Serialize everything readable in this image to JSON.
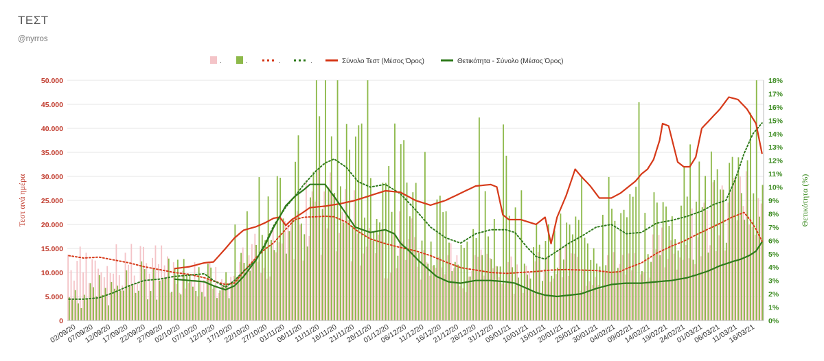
{
  "header": {
    "title": "ΤΕΣΤ",
    "subtitle": "@nyrros"
  },
  "colors": {
    "tests_bar": "#f4c4c8",
    "positivity_bar": "#8db94a",
    "tests_avg_line": "#d63a1a",
    "positivity_avg_line": "#2f7a1c",
    "left_axis": "#c0392b",
    "right_axis": "#3a8a1f"
  },
  "chart_data": {
    "type": "bar",
    "title": "",
    "legend": {
      "position": "top",
      "entries": [
        {
          "key": "tests_daily",
          "label": ".",
          "style": "bar"
        },
        {
          "key": "positivity_daily",
          "label": ".",
          "style": "bar"
        },
        {
          "key": "tests_avg_dotted",
          "label": ".",
          "style": "dotted"
        },
        {
          "key": "positivity_avg_dotted",
          "label": ".",
          "style": "dotted"
        },
        {
          "key": "tests_avg_total",
          "label": "Σύνολο Τεστ (Μέσος Όρος)",
          "style": "line"
        },
        {
          "key": "positivity_avg_total",
          "label": "Θετικότητα - Σύνολο (Μέσος Όρος)",
          "style": "line"
        }
      ]
    },
    "y_left": {
      "label": "Τεστ ανά ημέρα",
      "min": 0,
      "max": 50000,
      "ticks": [
        "0",
        "5.000",
        "10.000",
        "15.000",
        "20.000",
        "25.000",
        "30.000",
        "35.000",
        "40.000",
        "45.000",
        "50.000"
      ]
    },
    "y_right": {
      "label": "Θετικότητα (%)",
      "min": 0,
      "max": 18,
      "ticks": [
        "0%",
        "1%",
        "2%",
        "3%",
        "4%",
        "5%",
        "6%",
        "7%",
        "8%",
        "9%",
        "10%",
        "11%",
        "12%",
        "13%",
        "14%",
        "15%",
        "16%",
        "17%",
        "18%"
      ]
    },
    "x_ticks": [
      "02/09/20",
      "07/09/20",
      "12/09/20",
      "17/09/20",
      "22/09/20",
      "27/09/20",
      "02/10/20",
      "07/10/20",
      "12/10/20",
      "17/10/20",
      "22/10/20",
      "27/10/20",
      "01/11/20",
      "06/11/20",
      "11/11/20",
      "16/11/20",
      "21/11/20",
      "26/11/20",
      "01/12/20",
      "06/12/20",
      "11/12/20",
      "16/12/20",
      "21/12/20",
      "26/12/20",
      "31/12/20",
      "05/01/21",
      "10/01/21",
      "15/01/21",
      "20/01/21",
      "25/01/21",
      "30/01/21",
      "04/02/21",
      "09/02/21",
      "14/02/21",
      "19/02/21",
      "24/02/21",
      "01/03/21",
      "06/03/21",
      "11/03/21",
      "16/03/21"
    ],
    "day_count": 197,
    "series": [
      {
        "name": "Σύνολο Τεστ (Μέσος Όρος)",
        "axis": "left",
        "style": "line",
        "start_day": 35,
        "keypoints": [
          [
            35,
            10800
          ],
          [
            40,
            11200
          ],
          [
            45,
            12000
          ],
          [
            48,
            12200
          ],
          [
            52,
            15000
          ],
          [
            55,
            17200
          ],
          [
            58,
            18800
          ],
          [
            62,
            19500
          ],
          [
            65,
            20300
          ],
          [
            68,
            21300
          ],
          [
            70,
            21500
          ],
          [
            72,
            19800
          ],
          [
            74,
            21000
          ],
          [
            77,
            22200
          ],
          [
            80,
            23500
          ],
          [
            85,
            23800
          ],
          [
            90,
            24300
          ],
          [
            95,
            25000
          ],
          [
            100,
            26000
          ],
          [
            105,
            27000
          ],
          [
            110,
            26700
          ],
          [
            115,
            25000
          ],
          [
            120,
            24000
          ],
          [
            125,
            25000
          ],
          [
            130,
            26500
          ],
          [
            135,
            28000
          ],
          [
            140,
            28300
          ],
          [
            142,
            27800
          ],
          [
            144,
            22000
          ],
          [
            146,
            21000
          ],
          [
            150,
            21000
          ],
          [
            155,
            20000
          ],
          [
            158,
            21500
          ],
          [
            160,
            16000
          ],
          [
            162,
            21500
          ],
          [
            165,
            26000
          ],
          [
            168,
            31500
          ],
          [
            170,
            30000
          ],
          [
            173,
            28000
          ],
          [
            176,
            25500
          ],
          [
            180,
            25500
          ],
          [
            183,
            26500
          ],
          [
            185,
            27500
          ],
          [
            188,
            29000
          ],
          [
            190,
            30500
          ],
          [
            192,
            31500
          ],
          [
            194,
            33500
          ],
          [
            196,
            37500
          ],
          [
            197,
            41000
          ],
          [
            199,
            40500
          ],
          [
            200,
            38000
          ],
          [
            202,
            33000
          ],
          [
            204,
            32000
          ],
          [
            206,
            32000
          ],
          [
            208,
            34000
          ],
          [
            210,
            40000
          ],
          [
            213,
            42000
          ],
          [
            216,
            44000
          ],
          [
            219,
            46500
          ],
          [
            222,
            46000
          ],
          [
            225,
            44000
          ],
          [
            228,
            41000
          ],
          [
            230,
            34700
          ]
        ]
      },
      {
        "name": "Θετικότητα - Σύνολο (Μέσος Όρος)",
        "axis": "right",
        "style": "line",
        "start_day": 35,
        "keypoints": [
          [
            35,
            3.1
          ],
          [
            40,
            3.0
          ],
          [
            45,
            2.9
          ],
          [
            48,
            2.6
          ],
          [
            52,
            2.3
          ],
          [
            55,
            2.6
          ],
          [
            58,
            3.3
          ],
          [
            62,
            4.5
          ],
          [
            65,
            5.6
          ],
          [
            68,
            7.0
          ],
          [
            72,
            8.6
          ],
          [
            75,
            9.3
          ],
          [
            78,
            9.8
          ],
          [
            80,
            10.2
          ],
          [
            83,
            10.2
          ],
          [
            85,
            10.2
          ],
          [
            88,
            9.3
          ],
          [
            92,
            8.0
          ],
          [
            95,
            7.0
          ],
          [
            100,
            6.6
          ],
          [
            105,
            6.8
          ],
          [
            108,
            6.5
          ],
          [
            110,
            5.8
          ],
          [
            113,
            5.2
          ],
          [
            116,
            4.5
          ],
          [
            119,
            3.9
          ],
          [
            122,
            3.3
          ],
          [
            126,
            2.9
          ],
          [
            130,
            2.8
          ],
          [
            135,
            3.0
          ],
          [
            140,
            3.0
          ],
          [
            145,
            2.9
          ],
          [
            148,
            2.8
          ],
          [
            152,
            2.4
          ],
          [
            155,
            2.1
          ],
          [
            158,
            1.9
          ],
          [
            162,
            1.8
          ],
          [
            166,
            1.9
          ],
          [
            170,
            2.0
          ],
          [
            175,
            2.4
          ],
          [
            180,
            2.7
          ],
          [
            185,
            2.8
          ],
          [
            190,
            2.8
          ],
          [
            195,
            2.9
          ],
          [
            200,
            3.0
          ],
          [
            205,
            3.2
          ],
          [
            208,
            3.4
          ],
          [
            212,
            3.7
          ],
          [
            216,
            4.1
          ],
          [
            220,
            4.4
          ],
          [
            223,
            4.6
          ],
          [
            226,
            4.9
          ],
          [
            228,
            5.2
          ],
          [
            230,
            5.9
          ]
        ]
      },
      {
        "name": "",
        "legend_key": "tests_avg_dotted",
        "axis": "left",
        "style": "dotted",
        "start_day": 0,
        "keypoints": [
          [
            0,
            13500
          ],
          [
            5,
            13000
          ],
          [
            10,
            13200
          ],
          [
            15,
            12600
          ],
          [
            20,
            12000
          ],
          [
            25,
            11200
          ],
          [
            30,
            10600
          ],
          [
            35,
            10000
          ],
          [
            40,
            9600
          ],
          [
            45,
            8900
          ],
          [
            48,
            8200
          ],
          [
            52,
            7500
          ],
          [
            55,
            7800
          ],
          [
            58,
            10200
          ],
          [
            62,
            13000
          ],
          [
            65,
            14800
          ],
          [
            68,
            16200
          ],
          [
            72,
            19000
          ],
          [
            75,
            21000
          ],
          [
            78,
            21500
          ],
          [
            82,
            21600
          ],
          [
            85,
            21700
          ],
          [
            88,
            21600
          ],
          [
            92,
            20500
          ],
          [
            96,
            18500
          ],
          [
            100,
            17000
          ],
          [
            105,
            16000
          ],
          [
            110,
            15200
          ],
          [
            115,
            14500
          ],
          [
            120,
            13500
          ],
          [
            125,
            12200
          ],
          [
            130,
            11000
          ],
          [
            135,
            10500
          ],
          [
            140,
            10000
          ],
          [
            145,
            9800
          ],
          [
            150,
            10000
          ],
          [
            155,
            10200
          ],
          [
            160,
            10500
          ],
          [
            165,
            10600
          ],
          [
            170,
            10500
          ],
          [
            175,
            10400
          ],
          [
            180,
            10000
          ],
          [
            183,
            10200
          ],
          [
            185,
            10800
          ],
          [
            190,
            12000
          ],
          [
            195,
            14000
          ],
          [
            200,
            15500
          ],
          [
            204,
            16500
          ],
          [
            208,
            17800
          ],
          [
            212,
            19000
          ],
          [
            216,
            20200
          ],
          [
            220,
            21500
          ],
          [
            224,
            22500
          ],
          [
            226,
            21000
          ],
          [
            228,
            19000
          ],
          [
            230,
            16500
          ]
        ]
      },
      {
        "name": "",
        "legend_key": "positivity_avg_dotted",
        "axis": "right",
        "style": "dotted",
        "start_day": 0,
        "keypoints": [
          [
            0,
            1.6
          ],
          [
            5,
            1.6
          ],
          [
            10,
            1.7
          ],
          [
            15,
            2.1
          ],
          [
            20,
            2.6
          ],
          [
            25,
            3.0
          ],
          [
            30,
            3.1
          ],
          [
            35,
            3.3
          ],
          [
            40,
            3.4
          ],
          [
            45,
            3.5
          ],
          [
            48,
            3.0
          ],
          [
            52,
            2.5
          ],
          [
            55,
            3.0
          ],
          [
            58,
            3.7
          ],
          [
            62,
            4.5
          ],
          [
            65,
            5.7
          ],
          [
            68,
            7.1
          ],
          [
            72,
            8.5
          ],
          [
            75,
            9.3
          ],
          [
            78,
            10.2
          ],
          [
            82,
            11.2
          ],
          [
            85,
            11.8
          ],
          [
            88,
            12.1
          ],
          [
            92,
            11.5
          ],
          [
            96,
            10.4
          ],
          [
            100,
            10.0
          ],
          [
            105,
            10.2
          ],
          [
            110,
            9.5
          ],
          [
            115,
            8.3
          ],
          [
            120,
            7.0
          ],
          [
            125,
            6.2
          ],
          [
            130,
            5.8
          ],
          [
            135,
            6.5
          ],
          [
            140,
            6.8
          ],
          [
            145,
            6.8
          ],
          [
            148,
            6.6
          ],
          [
            152,
            5.5
          ],
          [
            155,
            4.8
          ],
          [
            158,
            4.6
          ],
          [
            162,
            5.2
          ],
          [
            166,
            5.8
          ],
          [
            170,
            6.3
          ],
          [
            175,
            7.0
          ],
          [
            180,
            7.2
          ],
          [
            185,
            6.5
          ],
          [
            190,
            6.6
          ],
          [
            195,
            7.3
          ],
          [
            200,
            7.5
          ],
          [
            205,
            7.8
          ],
          [
            210,
            8.2
          ],
          [
            214,
            8.7
          ],
          [
            218,
            9.0
          ],
          [
            221,
            10.5
          ],
          [
            224,
            12.5
          ],
          [
            227,
            14.0
          ],
          [
            230,
            14.8
          ]
        ]
      },
      {
        "name": "",
        "legend_key": "tests_daily",
        "axis": "left",
        "style": "bar"
      },
      {
        "name": "",
        "legend_key": "positivity_daily",
        "axis": "right",
        "style": "bar"
      }
    ]
  }
}
